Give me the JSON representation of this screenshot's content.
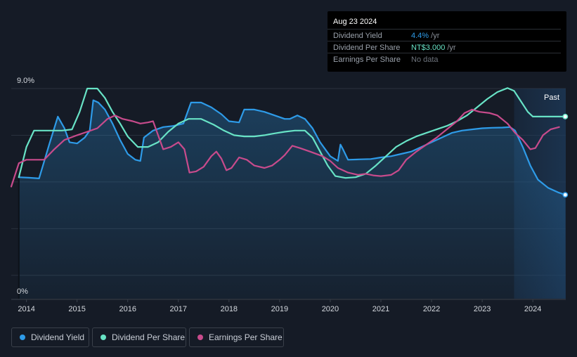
{
  "tooltip": {
    "date": "Aug 23 2024",
    "rows": [
      {
        "label": "Dividend Yield",
        "value": "4.4%",
        "unit": " /yr"
      },
      {
        "label": "Dividend Per Share",
        "value": "NT$3.000",
        "unit": " /yr"
      },
      {
        "label": "Earnings Per Share",
        "value": "No data",
        "unit": ""
      }
    ]
  },
  "past_label": "Past",
  "legend": [
    {
      "label": "Dividend Yield",
      "color": "#2e9be8"
    },
    {
      "label": "Dividend Per Share",
      "color": "#68e3c6"
    },
    {
      "label": "Earnings Per Share",
      "color": "#c84b8c"
    }
  ],
  "colors": {
    "background": "#151b26",
    "yield": "#2e9be8",
    "dps": "#68e3c6",
    "eps": "#c84b8c"
  },
  "chart_data": {
    "type": "line",
    "title": "",
    "xlabel": "",
    "ylabel": "",
    "ylim": [
      0,
      9.0
    ],
    "y_unit": "%",
    "y_tick_labels": [
      "9.0%",
      "0%"
    ],
    "xlim": [
      2013.7,
      2024.65
    ],
    "x_ticks": [
      2014,
      2015,
      2016,
      2017,
      2018,
      2019,
      2020,
      2021,
      2022,
      2023,
      2024
    ],
    "x_tick_labels": [
      "2014",
      "2015",
      "2016",
      "2017",
      "2018",
      "2019",
      "2020",
      "2021",
      "2022",
      "2023",
      "2024"
    ],
    "forecast_start": 2023.63,
    "series": [
      {
        "name": "Dividend Yield",
        "key": "yield",
        "area": true,
        "points": [
          [
            2013.85,
            5.2
          ],
          [
            2014.05,
            5.18
          ],
          [
            2014.25,
            5.15
          ],
          [
            2014.45,
            6.6
          ],
          [
            2014.62,
            7.8
          ],
          [
            2014.75,
            7.3
          ],
          [
            2014.85,
            6.7
          ],
          [
            2015.0,
            6.65
          ],
          [
            2015.15,
            6.9
          ],
          [
            2015.25,
            7.2
          ],
          [
            2015.32,
            8.5
          ],
          [
            2015.42,
            8.4
          ],
          [
            2015.55,
            8.1
          ],
          [
            2015.7,
            7.5
          ],
          [
            2015.85,
            6.8
          ],
          [
            2016.0,
            6.2
          ],
          [
            2016.15,
            5.95
          ],
          [
            2016.25,
            5.9
          ],
          [
            2016.32,
            6.9
          ],
          [
            2016.5,
            7.2
          ],
          [
            2016.7,
            7.35
          ],
          [
            2016.9,
            7.4
          ],
          [
            2017.1,
            7.5
          ],
          [
            2017.25,
            8.4
          ],
          [
            2017.45,
            8.4
          ],
          [
            2017.65,
            8.2
          ],
          [
            2017.85,
            7.9
          ],
          [
            2018.0,
            7.6
          ],
          [
            2018.2,
            7.55
          ],
          [
            2018.3,
            8.1
          ],
          [
            2018.5,
            8.1
          ],
          [
            2018.7,
            8.0
          ],
          [
            2018.9,
            7.85
          ],
          [
            2019.1,
            7.7
          ],
          [
            2019.2,
            7.7
          ],
          [
            2019.35,
            7.85
          ],
          [
            2019.5,
            7.7
          ],
          [
            2019.65,
            7.3
          ],
          [
            2019.8,
            6.7
          ],
          [
            2020.0,
            6.1
          ],
          [
            2020.15,
            5.9
          ],
          [
            2020.2,
            6.6
          ],
          [
            2020.25,
            6.4
          ],
          [
            2020.35,
            5.95
          ],
          [
            2020.6,
            5.97
          ],
          [
            2020.8,
            5.98
          ],
          [
            2021.0,
            6.05
          ],
          [
            2021.2,
            6.1
          ],
          [
            2021.4,
            6.2
          ],
          [
            2021.6,
            6.3
          ],
          [
            2021.8,
            6.5
          ],
          [
            2022.0,
            6.7
          ],
          [
            2022.2,
            6.9
          ],
          [
            2022.4,
            7.1
          ],
          [
            2022.6,
            7.2
          ],
          [
            2022.8,
            7.25
          ],
          [
            2023.0,
            7.3
          ],
          [
            2023.2,
            7.32
          ],
          [
            2023.4,
            7.33
          ],
          [
            2023.55,
            7.35
          ],
          [
            2023.65,
            7.2
          ],
          [
            2023.8,
            6.5
          ],
          [
            2023.95,
            5.7
          ],
          [
            2024.1,
            5.1
          ],
          [
            2024.3,
            4.75
          ],
          [
            2024.5,
            4.55
          ],
          [
            2024.64,
            4.45
          ]
        ]
      },
      {
        "name": "Dividend Per Share",
        "key": "dps",
        "area": false,
        "points": [
          [
            2013.85,
            5.2
          ],
          [
            2014.0,
            6.5
          ],
          [
            2014.15,
            7.2
          ],
          [
            2014.3,
            7.2
          ],
          [
            2014.5,
            7.2
          ],
          [
            2014.7,
            7.2
          ],
          [
            2014.9,
            7.25
          ],
          [
            2015.05,
            8.0
          ],
          [
            2015.2,
            9.0
          ],
          [
            2015.4,
            9.0
          ],
          [
            2015.55,
            8.6
          ],
          [
            2015.7,
            8.0
          ],
          [
            2015.85,
            7.5
          ],
          [
            2016.0,
            6.95
          ],
          [
            2016.2,
            6.5
          ],
          [
            2016.4,
            6.5
          ],
          [
            2016.6,
            6.7
          ],
          [
            2016.8,
            7.15
          ],
          [
            2017.0,
            7.5
          ],
          [
            2017.2,
            7.7
          ],
          [
            2017.45,
            7.7
          ],
          [
            2017.7,
            7.45
          ],
          [
            2017.9,
            7.2
          ],
          [
            2018.1,
            7.0
          ],
          [
            2018.3,
            6.95
          ],
          [
            2018.5,
            6.95
          ],
          [
            2018.7,
            7.0
          ],
          [
            2018.9,
            7.08
          ],
          [
            2019.1,
            7.15
          ],
          [
            2019.3,
            7.2
          ],
          [
            2019.5,
            7.2
          ],
          [
            2019.65,
            6.9
          ],
          [
            2019.8,
            6.3
          ],
          [
            2019.95,
            5.7
          ],
          [
            2020.1,
            5.25
          ],
          [
            2020.3,
            5.17
          ],
          [
            2020.5,
            5.2
          ],
          [
            2020.7,
            5.35
          ],
          [
            2020.9,
            5.7
          ],
          [
            2021.1,
            6.1
          ],
          [
            2021.3,
            6.5
          ],
          [
            2021.5,
            6.75
          ],
          [
            2021.7,
            6.95
          ],
          [
            2021.9,
            7.1
          ],
          [
            2022.1,
            7.25
          ],
          [
            2022.3,
            7.4
          ],
          [
            2022.5,
            7.6
          ],
          [
            2022.7,
            7.85
          ],
          [
            2022.9,
            8.2
          ],
          [
            2023.1,
            8.55
          ],
          [
            2023.3,
            8.85
          ],
          [
            2023.5,
            9.02
          ],
          [
            2023.63,
            8.9
          ],
          [
            2023.75,
            8.5
          ],
          [
            2023.9,
            8.0
          ],
          [
            2024.0,
            7.8
          ],
          [
            2024.2,
            7.8
          ],
          [
            2024.4,
            7.8
          ],
          [
            2024.64,
            7.8
          ]
        ]
      },
      {
        "name": "Earnings Per Share",
        "key": "eps",
        "area": false,
        "points": [
          [
            2013.7,
            4.8
          ],
          [
            2013.85,
            5.8
          ],
          [
            2014.0,
            5.95
          ],
          [
            2014.2,
            5.95
          ],
          [
            2014.35,
            5.95
          ],
          [
            2014.55,
            6.4
          ],
          [
            2014.75,
            6.8
          ],
          [
            2015.0,
            7.0
          ],
          [
            2015.2,
            7.15
          ],
          [
            2015.4,
            7.3
          ],
          [
            2015.6,
            7.7
          ],
          [
            2015.75,
            7.85
          ],
          [
            2015.9,
            7.7
          ],
          [
            2016.1,
            7.6
          ],
          [
            2016.25,
            7.5
          ],
          [
            2016.4,
            7.55
          ],
          [
            2016.5,
            7.6
          ],
          [
            2016.55,
            7.3
          ],
          [
            2016.7,
            6.4
          ],
          [
            2016.85,
            6.5
          ],
          [
            2017.0,
            6.7
          ],
          [
            2017.12,
            6.4
          ],
          [
            2017.22,
            5.4
          ],
          [
            2017.35,
            5.45
          ],
          [
            2017.5,
            5.65
          ],
          [
            2017.65,
            6.1
          ],
          [
            2017.75,
            6.3
          ],
          [
            2017.85,
            6.0
          ],
          [
            2017.95,
            5.5
          ],
          [
            2018.05,
            5.6
          ],
          [
            2018.2,
            6.05
          ],
          [
            2018.35,
            5.95
          ],
          [
            2018.5,
            5.7
          ],
          [
            2018.7,
            5.6
          ],
          [
            2018.85,
            5.7
          ],
          [
            2019.0,
            5.95
          ],
          [
            2019.1,
            6.15
          ],
          [
            2019.25,
            6.55
          ],
          [
            2019.4,
            6.45
          ],
          [
            2019.6,
            6.3
          ],
          [
            2019.85,
            6.1
          ],
          [
            2020.0,
            5.9
          ],
          [
            2020.15,
            5.6
          ],
          [
            2020.35,
            5.4
          ],
          [
            2020.55,
            5.3
          ],
          [
            2020.7,
            5.35
          ],
          [
            2020.85,
            5.28
          ],
          [
            2021.0,
            5.25
          ],
          [
            2021.2,
            5.3
          ],
          [
            2021.35,
            5.5
          ],
          [
            2021.5,
            5.95
          ],
          [
            2021.7,
            6.3
          ],
          [
            2021.9,
            6.6
          ],
          [
            2022.1,
            6.9
          ],
          [
            2022.3,
            7.25
          ],
          [
            2022.5,
            7.6
          ],
          [
            2022.65,
            7.95
          ],
          [
            2022.8,
            8.1
          ],
          [
            2022.95,
            8.0
          ],
          [
            2023.15,
            7.95
          ],
          [
            2023.3,
            7.85
          ],
          [
            2023.5,
            7.5
          ],
          [
            2023.65,
            7.1
          ],
          [
            2023.8,
            6.8
          ],
          [
            2023.95,
            6.4
          ],
          [
            2024.05,
            6.45
          ],
          [
            2024.2,
            7.0
          ],
          [
            2024.35,
            7.25
          ],
          [
            2024.52,
            7.35
          ]
        ]
      }
    ]
  }
}
